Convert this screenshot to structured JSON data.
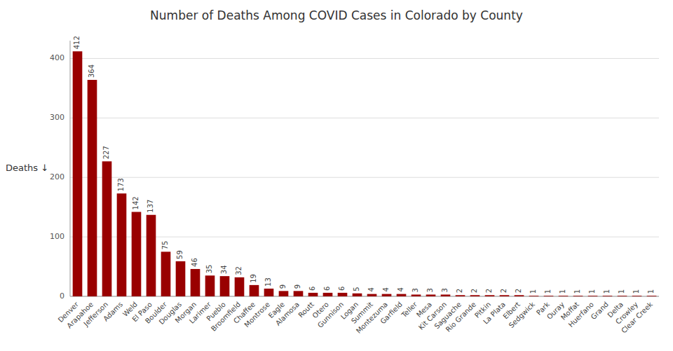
{
  "chart_data": {
    "type": "bar",
    "title": "Number of Deaths Among COVID Cases in Colorado by County",
    "ylabel": "Deaths ↓",
    "categories": [
      "Denver",
      "Arapahoe",
      "Jefferson",
      "Adams",
      "Weld",
      "El Paso",
      "Boulder",
      "Douglas",
      "Morgan",
      "Larimer",
      "Pueblo",
      "Broomfield",
      "Chaffee",
      "Montrose",
      "Eagle",
      "Alamosa",
      "Routt",
      "Otero",
      "Gunnison",
      "Logan",
      "Summit",
      "Montezuma",
      "Garfield",
      "Teller",
      "Mesa",
      "Kit Carson",
      "Saguache",
      "Rio Grande",
      "Pitkin",
      "La Plata",
      "Elbert",
      "Sedgwick",
      "Park",
      "Ouray",
      "Moffat",
      "Huerfano",
      "Grand",
      "Delta",
      "Crowley",
      "Clear Creek"
    ],
    "values": [
      412,
      364,
      227,
      173,
      142,
      137,
      75,
      59,
      46,
      35,
      34,
      32,
      19,
      13,
      9,
      9,
      6,
      6,
      6,
      5,
      4,
      4,
      4,
      3,
      3,
      3,
      2,
      2,
      2,
      2,
      2,
      1,
      1,
      1,
      1,
      1,
      1,
      1,
      1,
      1
    ],
    "color": "#990000",
    "ylim": [
      0,
      430
    ],
    "yticks": [
      0,
      100,
      200,
      300,
      400
    ],
    "grid": true,
    "data_labels": true
  }
}
